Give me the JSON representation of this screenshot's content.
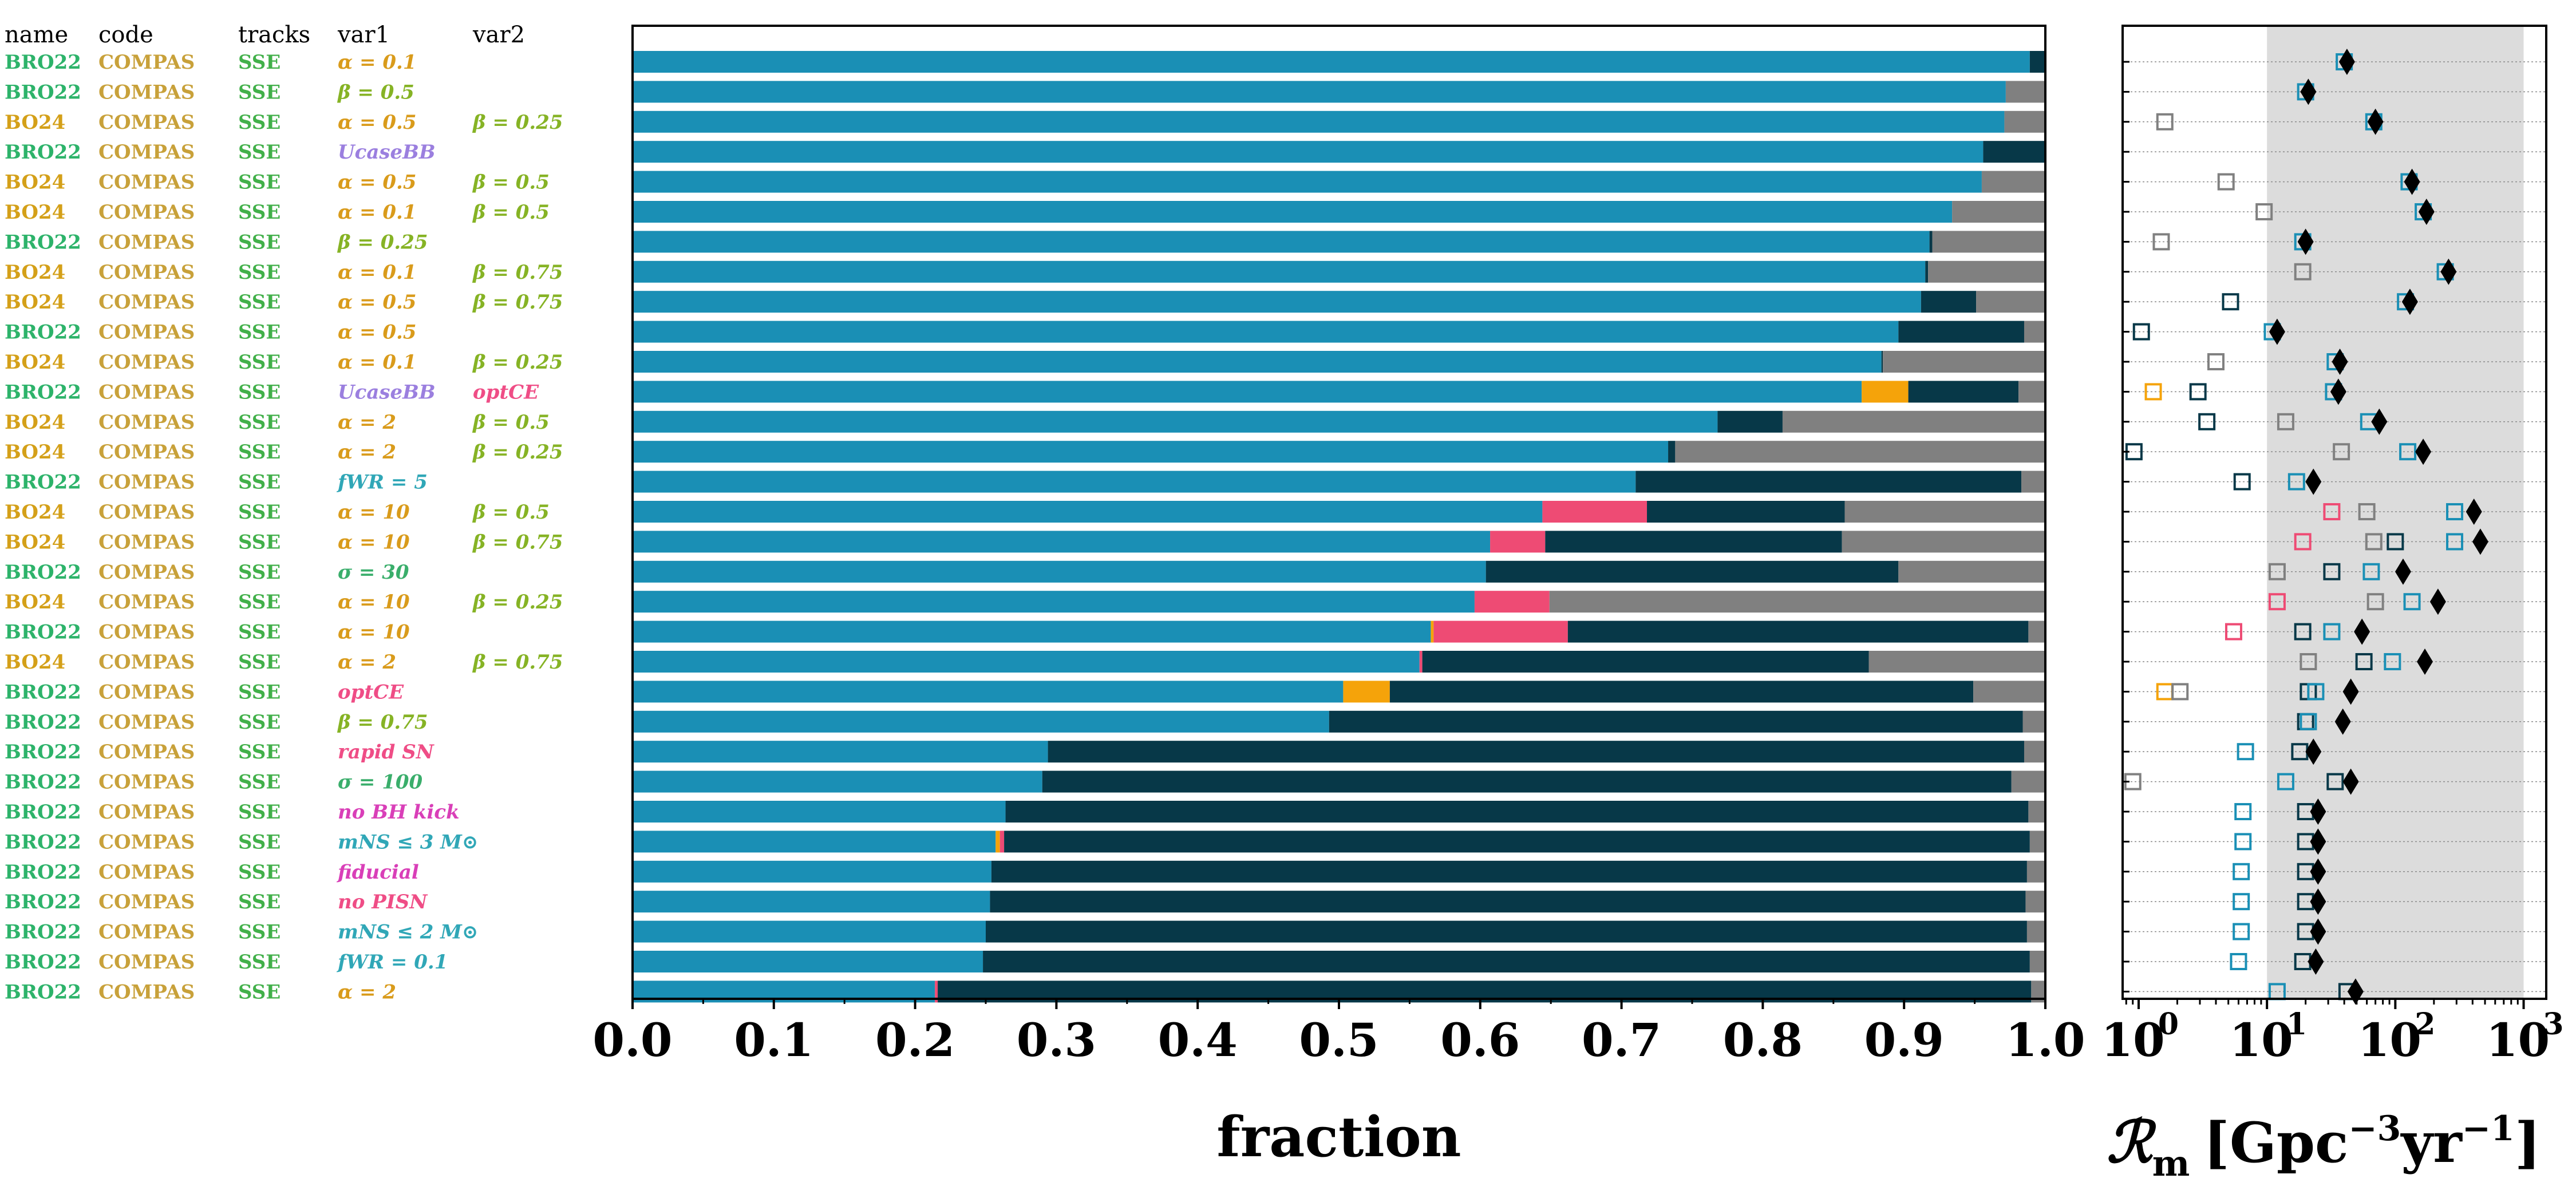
{
  "colors": {
    "teal": "#1a8fb5",
    "dark": "#073848",
    "gray": "#808080",
    "pink": "#ee4b74",
    "orange": "#f5a30a",
    "rate_band": "#dcdcdc",
    "name_bro22": "#2db36a",
    "name_bo24": "#d4a019",
    "code": "#c8a13a",
    "tracks": "#42b04a",
    "var_alpha": "#d99b1b",
    "var_beta": "#86b325",
    "var_beta2": "#3aa66b",
    "var_purple": "#9b7fdf",
    "var_pink": "#ef4d86",
    "var_magenta": "#d93fb8",
    "var_cyan": "#30a7b7",
    "var_green": "#3aae6b"
  },
  "table": {
    "headers": [
      "name",
      "code",
      "tracks",
      "var1",
      "var2"
    ],
    "rows": [
      {
        "name": "BRO22",
        "code": "COMPAS",
        "tracks": "SSE",
        "var1": "α = 0.1",
        "var2": ""
      },
      {
        "name": "BRO22",
        "code": "COMPAS",
        "tracks": "SSE",
        "var1": "β = 0.5",
        "var2": ""
      },
      {
        "name": "BO24",
        "code": "COMPAS",
        "tracks": "SSE",
        "var1": "α = 0.5",
        "var2": "β = 0.25"
      },
      {
        "name": "BRO22",
        "code": "COMPAS",
        "tracks": "SSE",
        "var1": "UcaseBB",
        "var2": ""
      },
      {
        "name": "BO24",
        "code": "COMPAS",
        "tracks": "SSE",
        "var1": "α = 0.5",
        "var2": "β = 0.5"
      },
      {
        "name": "BO24",
        "code": "COMPAS",
        "tracks": "SSE",
        "var1": "α = 0.1",
        "var2": "β = 0.5"
      },
      {
        "name": "BRO22",
        "code": "COMPAS",
        "tracks": "SSE",
        "var1": "β = 0.25",
        "var2": ""
      },
      {
        "name": "BO24",
        "code": "COMPAS",
        "tracks": "SSE",
        "var1": "α = 0.1",
        "var2": "β = 0.75"
      },
      {
        "name": "BO24",
        "code": "COMPAS",
        "tracks": "SSE",
        "var1": "α = 0.5",
        "var2": "β = 0.75"
      },
      {
        "name": "BRO22",
        "code": "COMPAS",
        "tracks": "SSE",
        "var1": "α = 0.5",
        "var2": ""
      },
      {
        "name": "BO24",
        "code": "COMPAS",
        "tracks": "SSE",
        "var1": "α = 0.1",
        "var2": "β = 0.25"
      },
      {
        "name": "BRO22",
        "code": "COMPAS",
        "tracks": "SSE",
        "var1": "UcaseBB",
        "var2": "optCE"
      },
      {
        "name": "BO24",
        "code": "COMPAS",
        "tracks": "SSE",
        "var1": "α = 2",
        "var2": "β = 0.5"
      },
      {
        "name": "BO24",
        "code": "COMPAS",
        "tracks": "SSE",
        "var1": "α = 2",
        "var2": "β = 0.25"
      },
      {
        "name": "BRO22",
        "code": "COMPAS",
        "tracks": "SSE",
        "var1": "fWR = 5",
        "var2": ""
      },
      {
        "name": "BO24",
        "code": "COMPAS",
        "tracks": "SSE",
        "var1": "α = 10",
        "var2": "β = 0.5"
      },
      {
        "name": "BO24",
        "code": "COMPAS",
        "tracks": "SSE",
        "var1": "α = 10",
        "var2": "β = 0.75"
      },
      {
        "name": "BRO22",
        "code": "COMPAS",
        "tracks": "SSE",
        "var1": "σ = 30",
        "var2": ""
      },
      {
        "name": "BO24",
        "code": "COMPAS",
        "tracks": "SSE",
        "var1": "α = 10",
        "var2": "β = 0.25"
      },
      {
        "name": "BRO22",
        "code": "COMPAS",
        "tracks": "SSE",
        "var1": "α = 10",
        "var2": ""
      },
      {
        "name": "BO24",
        "code": "COMPAS",
        "tracks": "SSE",
        "var1": "α = 2",
        "var2": "β = 0.75"
      },
      {
        "name": "BRO22",
        "code": "COMPAS",
        "tracks": "SSE",
        "var1": "optCE",
        "var2": ""
      },
      {
        "name": "BRO22",
        "code": "COMPAS",
        "tracks": "SSE",
        "var1": "β = 0.75",
        "var2": ""
      },
      {
        "name": "BRO22",
        "code": "COMPAS",
        "tracks": "SSE",
        "var1": "rapid SN",
        "var2": ""
      },
      {
        "name": "BRO22",
        "code": "COMPAS",
        "tracks": "SSE",
        "var1": "σ = 100",
        "var2": ""
      },
      {
        "name": "BRO22",
        "code": "COMPAS",
        "tracks": "SSE",
        "var1": "no BH kick",
        "var2": ""
      },
      {
        "name": "BRO22",
        "code": "COMPAS",
        "tracks": "SSE",
        "var1": "mNS ≤ 3 M⊙",
        "var2": ""
      },
      {
        "name": "BRO22",
        "code": "COMPAS",
        "tracks": "SSE",
        "var1": "fiducial",
        "var2": ""
      },
      {
        "name": "BRO22",
        "code": "COMPAS",
        "tracks": "SSE",
        "var1": "no PISN",
        "var2": ""
      },
      {
        "name": "BRO22",
        "code": "COMPAS",
        "tracks": "SSE",
        "var1": "mNS ≤ 2 M⊙",
        "var2": ""
      },
      {
        "name": "BRO22",
        "code": "COMPAS",
        "tracks": "SSE",
        "var1": "fWR = 0.1",
        "var2": ""
      },
      {
        "name": "BRO22",
        "code": "COMPAS",
        "tracks": "SSE",
        "var1": "α = 2",
        "var2": ""
      }
    ]
  },
  "chart_data": [
    {
      "type": "bar",
      "orientation": "horizontal",
      "stacked": true,
      "xlabel": "fraction",
      "xlim": [
        0.0,
        1.0
      ],
      "xticks": [
        "0.0",
        "0.1",
        "0.2",
        "0.3",
        "0.4",
        "0.5",
        "0.6",
        "0.7",
        "0.8",
        "0.9",
        "1.0"
      ],
      "segment_colors": [
        "#1a8fb5",
        "#f5a30a",
        "#ee4b74",
        "#073848",
        "#808080"
      ],
      "rows": [
        [
          0.989,
          0,
          0,
          0.011,
          0
        ],
        [
          0.972,
          0,
          0,
          0,
          0.028
        ],
        [
          0.971,
          0,
          0,
          0,
          0.029
        ],
        [
          0.956,
          0,
          0,
          0.044,
          0
        ],
        [
          0.955,
          0,
          0,
          0,
          0.045
        ],
        [
          0.934,
          0,
          0,
          0,
          0.066
        ],
        [
          0.918,
          0,
          0,
          0.002,
          0.08
        ],
        [
          0.915,
          0,
          0,
          0.002,
          0.083
        ],
        [
          0.912,
          0,
          0,
          0.039,
          0.049
        ],
        [
          0.896,
          0,
          0,
          0.089,
          0.015
        ],
        [
          0.884,
          0,
          0,
          0.001,
          0.115
        ],
        [
          0.87,
          0.033,
          0,
          0.078,
          0.019
        ],
        [
          0.768,
          0,
          0,
          0.046,
          0.186
        ],
        [
          0.733,
          0,
          0,
          0.005,
          0.262
        ],
        [
          0.71,
          0,
          0,
          0.273,
          0.017
        ],
        [
          0.644,
          0,
          0.074,
          0.14,
          0.142
        ],
        [
          0.607,
          0,
          0.039,
          0.21,
          0.144
        ],
        [
          0.604,
          0,
          0,
          0.292,
          0.104
        ],
        [
          0.596,
          0,
          0.053,
          0,
          0.351
        ],
        [
          0.565,
          0.002,
          0.095,
          0.326,
          0.012
        ],
        [
          0.557,
          0,
          0.002,
          0.316,
          0.125
        ],
        [
          0.503,
          0.033,
          0,
          0.413,
          0.051
        ],
        [
          0.493,
          0,
          0,
          0.491,
          0.016
        ],
        [
          0.294,
          0,
          0,
          0.691,
          0.015
        ],
        [
          0.29,
          0,
          0,
          0.686,
          0.024
        ],
        [
          0.264,
          0,
          0,
          0.724,
          0.012
        ],
        [
          0.257,
          0.003,
          0.003,
          0.726,
          0.011
        ],
        [
          0.254,
          0,
          0,
          0.733,
          0.013
        ],
        [
          0.253,
          0,
          0,
          0.733,
          0.014
        ],
        [
          0.25,
          0,
          0,
          0.737,
          0.013
        ],
        [
          0.248,
          0,
          0,
          0.741,
          0.011
        ],
        [
          0.214,
          0,
          0.002,
          0.774,
          0.01
        ]
      ]
    },
    {
      "type": "scatter",
      "xscale": "log",
      "xlim": [
        0.75,
        1500
      ],
      "xticks": [
        "10",
        "10",
        "10",
        "10"
      ],
      "xtick_exponents": [
        "0",
        "1",
        "2",
        "3"
      ],
      "xlabel_main": "ℛ",
      "xlabel_sub": "m",
      "xlabel_unit": "[Gpc",
      "xlabel_exp1": "−3",
      "xlabel_mid": "yr",
      "xlabel_exp2": "−1",
      "xlabel_close": "]",
      "shaded_range": [
        10,
        1000
      ],
      "rows": [
        {
          "diamond": 42,
          "squares": [
            {
              "v": 40,
              "c": "#1a8fb5"
            }
          ]
        },
        {
          "diamond": 21,
          "squares": [
            {
              "v": 20,
              "c": "#1a8fb5"
            }
          ]
        },
        {
          "diamond": 70,
          "squares": [
            {
              "v": 1.6,
              "c": "#808080"
            },
            {
              "v": 68,
              "c": "#1a8fb5"
            }
          ]
        },
        {
          "diamond": null,
          "squares": []
        },
        {
          "diamond": 135,
          "squares": [
            {
              "v": 4.8,
              "c": "#808080"
            },
            {
              "v": 128,
              "c": "#1a8fb5"
            }
          ]
        },
        {
          "diamond": 175,
          "squares": [
            {
              "v": 9.5,
              "c": "#808080"
            },
            {
              "v": 165,
              "c": "#1a8fb5"
            }
          ]
        },
        {
          "diamond": 20,
          "squares": [
            {
              "v": 1.5,
              "c": "#808080"
            },
            {
              "v": 19,
              "c": "#1a8fb5"
            }
          ]
        },
        {
          "diamond": 260,
          "squares": [
            {
              "v": 19,
              "c": "#808080"
            },
            {
              "v": 245,
              "c": "#1a8fb5"
            }
          ]
        },
        {
          "diamond": 130,
          "squares": [
            {
              "v": 5.2,
              "c": "#073848"
            },
            {
              "v": 120,
              "c": "#1a8fb5"
            }
          ]
        },
        {
          "diamond": 12,
          "squares": [
            {
              "v": 1.05,
              "c": "#073848"
            },
            {
              "v": 11,
              "c": "#1a8fb5"
            }
          ]
        },
        {
          "diamond": 37,
          "squares": [
            {
              "v": 4,
              "c": "#808080"
            },
            {
              "v": 34,
              "c": "#1a8fb5"
            }
          ]
        },
        {
          "diamond": 36,
          "squares": [
            {
              "v": 1.3,
              "c": "#f5a30a"
            },
            {
              "v": 2.9,
              "c": "#073848"
            },
            {
              "v": 33,
              "c": "#1a8fb5"
            }
          ]
        },
        {
          "diamond": 75,
          "squares": [
            {
              "v": 3.4,
              "c": "#073848"
            },
            {
              "v": 14,
              "c": "#808080"
            },
            {
              "v": 62,
              "c": "#1a8fb5"
            }
          ]
        },
        {
          "diamond": 165,
          "squares": [
            {
              "v": 0.92,
              "c": "#073848"
            },
            {
              "v": 38,
              "c": "#808080"
            },
            {
              "v": 125,
              "c": "#1a8fb5"
            }
          ]
        },
        {
          "diamond": 23,
          "squares": [
            {
              "v": 6.4,
              "c": "#073848"
            },
            {
              "v": 17,
              "c": "#1a8fb5"
            }
          ]
        },
        {
          "diamond": 410,
          "squares": [
            {
              "v": 32,
              "c": "#ee4b74"
            },
            {
              "v": 60,
              "c": "#808080"
            },
            {
              "v": 290,
              "c": "#1a8fb5"
            }
          ]
        },
        {
          "diamond": 460,
          "squares": [
            {
              "v": 19,
              "c": "#ee4b74"
            },
            {
              "v": 68,
              "c": "#808080"
            },
            {
              "v": 100,
              "c": "#073848"
            },
            {
              "v": 290,
              "c": "#1a8fb5"
            }
          ]
        },
        {
          "diamond": 115,
          "squares": [
            {
              "v": 12,
              "c": "#808080"
            },
            {
              "v": 32,
              "c": "#073848"
            },
            {
              "v": 65,
              "c": "#1a8fb5"
            }
          ]
        },
        {
          "diamond": 215,
          "squares": [
            {
              "v": 12,
              "c": "#ee4b74"
            },
            {
              "v": 70,
              "c": "#808080"
            },
            {
              "v": 135,
              "c": "#1a8fb5"
            }
          ]
        },
        {
          "diamond": 55,
          "squares": [
            {
              "v": 5.5,
              "c": "#ee4b74"
            },
            {
              "v": 19,
              "c": "#073848"
            },
            {
              "v": 32,
              "c": "#1a8fb5"
            }
          ]
        },
        {
          "diamond": 170,
          "squares": [
            {
              "v": 21,
              "c": "#808080"
            },
            {
              "v": 57,
              "c": "#073848"
            },
            {
              "v": 95,
              "c": "#1a8fb5"
            }
          ]
        },
        {
          "diamond": 45,
          "squares": [
            {
              "v": 1.6,
              "c": "#f5a30a"
            },
            {
              "v": 2.1,
              "c": "#808080"
            },
            {
              "v": 21,
              "c": "#073848"
            },
            {
              "v": 24,
              "c": "#1a8fb5"
            }
          ]
        },
        {
          "diamond": 39,
          "squares": [
            {
              "v": 20,
              "c": "#073848"
            },
            {
              "v": 21,
              "c": "#1a8fb5"
            }
          ]
        },
        {
          "diamond": 23,
          "squares": [
            {
              "v": 6.8,
              "c": "#1a8fb5"
            },
            {
              "v": 18,
              "c": "#073848"
            }
          ]
        },
        {
          "diamond": 45,
          "squares": [
            {
              "v": 0.9,
              "c": "#808080"
            },
            {
              "v": 14,
              "c": "#1a8fb5"
            },
            {
              "v": 34,
              "c": "#073848"
            }
          ]
        },
        {
          "diamond": 25,
          "squares": [
            {
              "v": 6.5,
              "c": "#1a8fb5"
            },
            {
              "v": 20,
              "c": "#073848"
            }
          ]
        },
        {
          "diamond": 25,
          "squares": [
            {
              "v": 6.5,
              "c": "#1a8fb5"
            },
            {
              "v": 20,
              "c": "#073848"
            }
          ]
        },
        {
          "diamond": 25,
          "squares": [
            {
              "v": 6.3,
              "c": "#1a8fb5"
            },
            {
              "v": 20,
              "c": "#073848"
            }
          ]
        },
        {
          "diamond": 25,
          "squares": [
            {
              "v": 6.3,
              "c": "#1a8fb5"
            },
            {
              "v": 20,
              "c": "#073848"
            }
          ]
        },
        {
          "diamond": 25,
          "squares": [
            {
              "v": 6.3,
              "c": "#1a8fb5"
            },
            {
              "v": 20,
              "c": "#073848"
            }
          ]
        },
        {
          "diamond": 24,
          "squares": [
            {
              "v": 6.0,
              "c": "#1a8fb5"
            },
            {
              "v": 19,
              "c": "#073848"
            }
          ]
        },
        {
          "diamond": 49,
          "squares": [
            {
              "v": 12,
              "c": "#1a8fb5"
            },
            {
              "v": 42,
              "c": "#073848"
            }
          ]
        }
      ]
    }
  ]
}
